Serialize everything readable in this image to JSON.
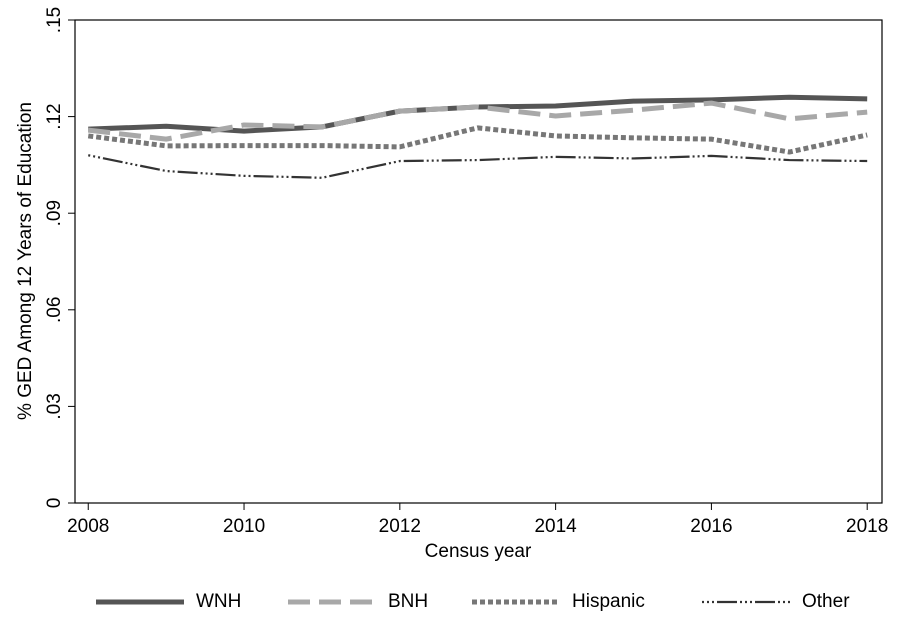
{
  "chart_data": {
    "type": "line",
    "x_label": "Census year",
    "y_label": "% GED Among 12 Years of Education",
    "x": [
      2008,
      2009,
      2010,
      2011,
      2012,
      2013,
      2014,
      2015,
      2016,
      2017,
      2018
    ],
    "series": [
      {
        "name": "WNH",
        "color": "#555555",
        "values": [
          0.1161,
          0.117,
          0.1155,
          0.1168,
          0.1217,
          0.123,
          0.1233,
          0.1248,
          0.1252,
          0.126,
          0.1255
        ]
      },
      {
        "name": "BNH",
        "color": "#a8a8a8",
        "values": [
          0.1158,
          0.113,
          0.1174,
          0.1168,
          0.1217,
          0.123,
          0.1202,
          0.122,
          0.1242,
          0.1193,
          0.1214
        ]
      },
      {
        "name": "Hispanic",
        "color": "#777777",
        "values": [
          0.114,
          0.1109,
          0.111,
          0.111,
          0.1106,
          0.1165,
          0.114,
          0.1134,
          0.113,
          0.109,
          0.1143
        ]
      },
      {
        "name": "Other",
        "color": "#333333",
        "values": [
          0.108,
          0.1031,
          0.1016,
          0.101,
          0.1062,
          0.1065,
          0.1075,
          0.107,
          0.1078,
          0.1065,
          0.1062
        ]
      }
    ],
    "xlim": [
      2007.83,
      2018.19
    ],
    "xticks": [
      2008,
      2010,
      2012,
      2014,
      2016,
      2018
    ],
    "ylim": [
      0,
      0.15
    ],
    "yticks": [
      0,
      {
        "value": 0.03,
        "label": ".03"
      },
      {
        "value": 0.06,
        "label": ".06"
      },
      {
        "value": 0.09,
        "label": ".09"
      },
      {
        "value": 0.12,
        "label": ".12"
      },
      {
        "value": 0.15,
        "label": ".15"
      }
    ],
    "grid": false,
    "legend": "bottom"
  }
}
